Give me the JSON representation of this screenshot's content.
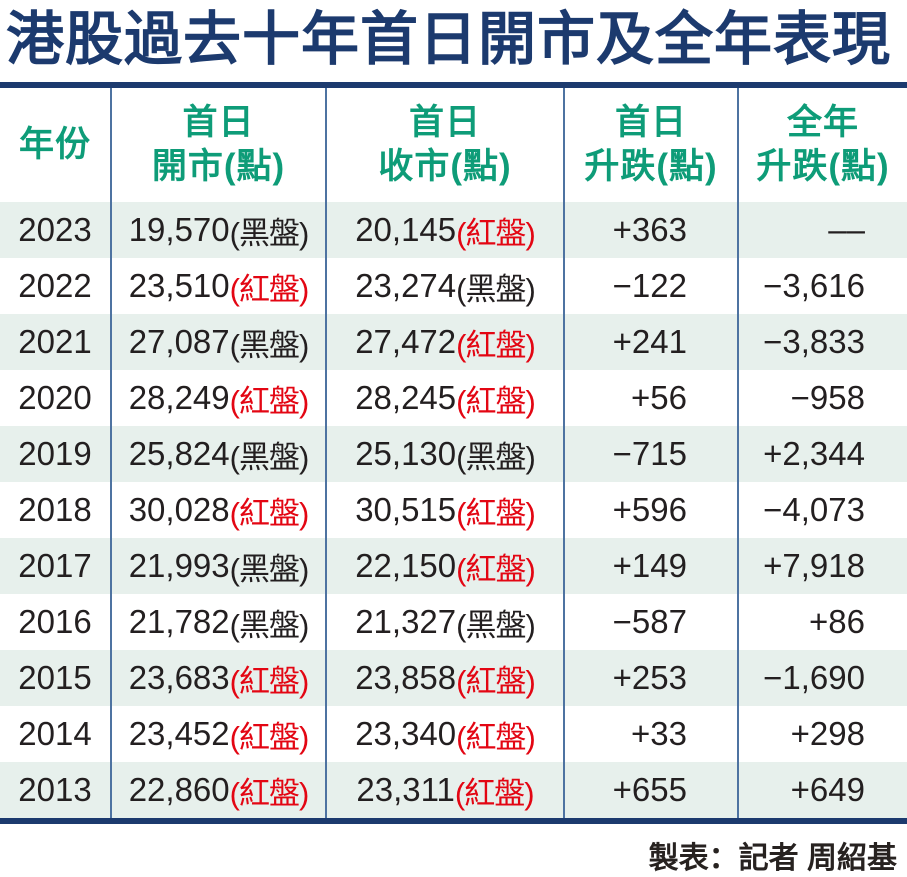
{
  "title": "港股過去十年首日開市及全年表現",
  "footer": "製表：記者 周紹基",
  "colors": {
    "title_navy": "#1c3a6e",
    "rule_navy": "#1c3a6e",
    "separator_blue": "#4e73a1",
    "header_green": "#0e9c78",
    "red_session": "#e30613",
    "black_text": "#231f20",
    "stripe_mint": "#e7f0ec"
  },
  "table": {
    "headers": {
      "year": "年份",
      "open_l1": "首日",
      "open_l2": "開市(點)",
      "close_l1": "首日",
      "close_l2": "收市(點)",
      "day_l1": "首日",
      "day_l2": "升跌(點)",
      "ychg_l1": "全年",
      "ychg_l2": "升跌(點)"
    },
    "rows": [
      {
        "year": "2023",
        "open": "19,570",
        "open_session": "(黑盤)",
        "open_type": "black",
        "close": "20,145",
        "close_session": "(紅盤)",
        "close_type": "red",
        "day_change": "+363",
        "year_change": "––"
      },
      {
        "year": "2022",
        "open": "23,510",
        "open_session": "(紅盤)",
        "open_type": "red",
        "close": "23,274",
        "close_session": "(黑盤)",
        "close_type": "black",
        "day_change": "−122",
        "year_change": "−3,616"
      },
      {
        "year": "2021",
        "open": "27,087",
        "open_session": "(黑盤)",
        "open_type": "black",
        "close": "27,472",
        "close_session": "(紅盤)",
        "close_type": "red",
        "day_change": "+241",
        "year_change": "−3,833"
      },
      {
        "year": "2020",
        "open": "28,249",
        "open_session": "(紅盤)",
        "open_type": "red",
        "close": "28,245",
        "close_session": "(紅盤)",
        "close_type": "red",
        "day_change": "+56",
        "year_change": "−958"
      },
      {
        "year": "2019",
        "open": "25,824",
        "open_session": "(黑盤)",
        "open_type": "black",
        "close": "25,130",
        "close_session": "(黑盤)",
        "close_type": "black",
        "day_change": "−715",
        "year_change": "+2,344"
      },
      {
        "year": "2018",
        "open": "30,028",
        "open_session": "(紅盤)",
        "open_type": "red",
        "close": "30,515",
        "close_session": "(紅盤)",
        "close_type": "red",
        "day_change": "+596",
        "year_change": "−4,073"
      },
      {
        "year": "2017",
        "open": "21,993",
        "open_session": "(黑盤)",
        "open_type": "black",
        "close": "22,150",
        "close_session": "(紅盤)",
        "close_type": "red",
        "day_change": "+149",
        "year_change": "+7,918"
      },
      {
        "year": "2016",
        "open": "21,782",
        "open_session": "(黑盤)",
        "open_type": "black",
        "close": "21,327",
        "close_session": "(黑盤)",
        "close_type": "black",
        "day_change": "−587",
        "year_change": "+86"
      },
      {
        "year": "2015",
        "open": "23,683",
        "open_session": "(紅盤)",
        "open_type": "red",
        "close": "23,858",
        "close_session": "(紅盤)",
        "close_type": "red",
        "day_change": "+253",
        "year_change": "−1,690"
      },
      {
        "year": "2014",
        "open": "23,452",
        "open_session": "(紅盤)",
        "open_type": "red",
        "close": "23,340",
        "close_session": "(紅盤)",
        "close_type": "red",
        "day_change": "+33",
        "year_change": "+298"
      },
      {
        "year": "2013",
        "open": "22,860",
        "open_session": "(紅盤)",
        "open_type": "red",
        "close": "23,311",
        "close_session": "(紅盤)",
        "close_type": "red",
        "day_change": "+655",
        "year_change": "+649"
      }
    ]
  },
  "chart_data": {
    "type": "table",
    "title": "港股過去十年首日開市及全年表現",
    "columns": [
      "年份",
      "首日開市(點)",
      "首日收市(點)",
      "首日升跌(點)",
      "全年升跌(點)"
    ],
    "rows": [
      [
        "2023",
        "19,570(黑盤)",
        "20,145(紅盤)",
        "+363",
        "––"
      ],
      [
        "2022",
        "23,510(紅盤)",
        "23,274(黑盤)",
        "−122",
        "−3,616"
      ],
      [
        "2021",
        "27,087(黑盤)",
        "27,472(紅盤)",
        "+241",
        "−3,833"
      ],
      [
        "2020",
        "28,249(紅盤)",
        "28,245(紅盤)",
        "+56",
        "−958"
      ],
      [
        "2019",
        "25,824(黑盤)",
        "25,130(黑盤)",
        "−715",
        "+2,344"
      ],
      [
        "2018",
        "30,028(紅盤)",
        "30,515(紅盤)",
        "+596",
        "−4,073"
      ],
      [
        "2017",
        "21,993(黑盤)",
        "22,150(紅盤)",
        "+149",
        "+7,918"
      ],
      [
        "2016",
        "21,782(黑盤)",
        "21,327(黑盤)",
        "−587",
        "+86"
      ],
      [
        "2015",
        "23,683(紅盤)",
        "23,858(紅盤)",
        "+253",
        "−1,690"
      ],
      [
        "2014",
        "23,452(紅盤)",
        "23,340(紅盤)",
        "+33",
        "+298"
      ],
      [
        "2013",
        "22,860(紅盤)",
        "23,311(紅盤)",
        "+655",
        "+649"
      ]
    ],
    "notes": "紅盤 rendered red, 黑盤 rendered black; footer credit 製表：記者 周紹基"
  }
}
